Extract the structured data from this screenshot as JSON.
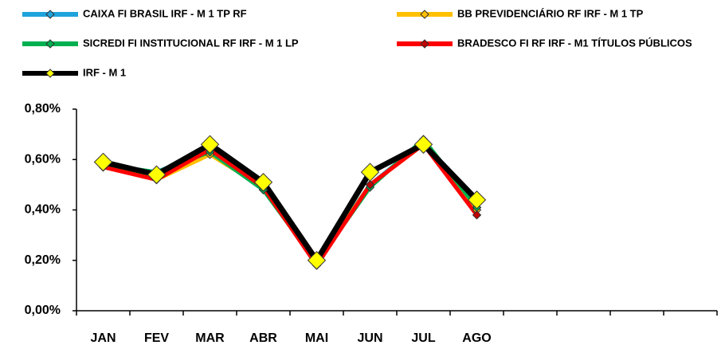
{
  "chart_data": {
    "type": "line",
    "categories": [
      "JAN",
      "FEV",
      "MAR",
      "ABR",
      "MAI",
      "JUN",
      "JUL",
      "AGO",
      null,
      null,
      null,
      null
    ],
    "series": [
      {
        "name": "CAIXA FI BRASIL IRF - M 1 TP RF",
        "color": "#1fa3dc",
        "marker_color": "#1fa3dc",
        "values": [
          0.58,
          0.55,
          0.64,
          0.48,
          0.2,
          0.5,
          0.67,
          0.41,
          null,
          null,
          null,
          null
        ]
      },
      {
        "name": "BB PREVIDENCIÁRIO RF IRF - M 1 TP",
        "color": "#ffc000",
        "marker_color": "#ffc000",
        "values": [
          0.58,
          0.52,
          0.62,
          0.49,
          0.19,
          0.5,
          0.66,
          0.4,
          null,
          null,
          null,
          null
        ]
      },
      {
        "name": "SICREDI FI INSTITUCIONAL RF IRF - M 1 LP",
        "color": "#00b050",
        "marker_color": "#00b050",
        "values": [
          0.58,
          0.55,
          0.63,
          0.48,
          0.19,
          0.49,
          0.68,
          0.41,
          null,
          null,
          null,
          null
        ]
      },
      {
        "name": "BRADESCO FI RF IRF - M1 TÍTULOS PÚBLICOS",
        "color": "#ff0000",
        "marker_color": "#c00000",
        "values": [
          0.57,
          0.52,
          0.64,
          0.49,
          0.18,
          0.5,
          0.66,
          0.38,
          null,
          null,
          null,
          null
        ]
      },
      {
        "name": "IRF - M 1",
        "color": "#000000",
        "marker_color": "#ffff00",
        "values": [
          0.59,
          0.54,
          0.66,
          0.51,
          0.2,
          0.55,
          0.66,
          0.44,
          null,
          null,
          null,
          null
        ]
      }
    ],
    "ylim": [
      0,
      0.8
    ],
    "yticks": [
      {
        "value": 0,
        "label": "0,00%"
      },
      {
        "value": 0.2,
        "label": "0,20%"
      },
      {
        "value": 0.4,
        "label": "0,40%"
      },
      {
        "value": 0.6,
        "label": "0,60%"
      },
      {
        "value": 0.8,
        "label": "0,80%"
      }
    ],
    "grid": false
  }
}
